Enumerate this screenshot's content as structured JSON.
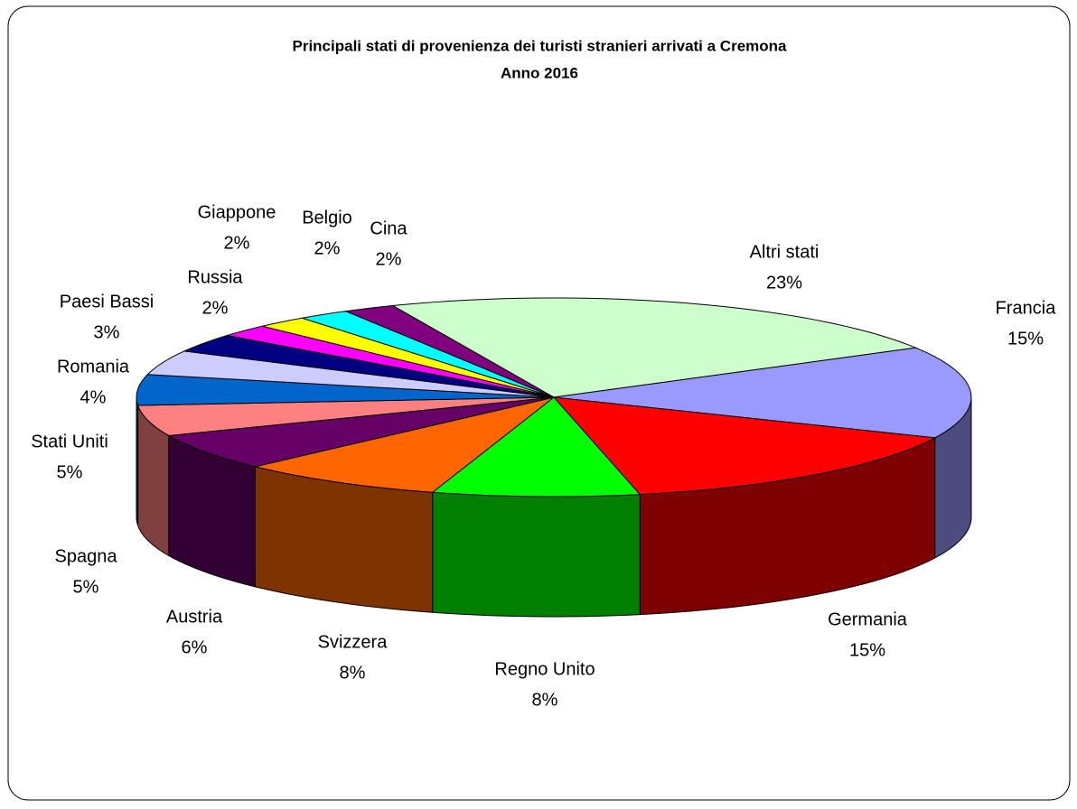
{
  "chart_data": {
    "type": "pie3d",
    "title": "Principali stati di provenienza dei turisti stranieri arrivati a Cremona",
    "subtitle": "Anno 2016",
    "categories": [
      "Altri stati",
      "Francia",
      "Germania",
      "Regno Unito",
      "Svizzera",
      "Austria",
      "Spagna",
      "Stati Uniti",
      "Romania",
      "Paesi Bassi",
      "Russia",
      "Giappone",
      "Belgio",
      "Cina"
    ],
    "values": [
      23,
      15,
      15,
      8,
      8,
      6,
      5,
      5,
      4,
      3,
      2,
      2,
      2,
      2
    ],
    "value_labels": [
      "23%",
      "15%",
      "15%",
      "8%",
      "8%",
      "6%",
      "5%",
      "5%",
      "4%",
      "3%",
      "2%",
      "2%",
      "2%",
      "2%"
    ],
    "colors": [
      "#ccffcc",
      "#9999ff",
      "#ff0000",
      "#00ff00",
      "#ff6600",
      "#660066",
      "#ff8080",
      "#0066cc",
      "#ccccff",
      "#000080",
      "#ff00ff",
      "#ffff00",
      "#00ffff",
      "#800080"
    ]
  }
}
